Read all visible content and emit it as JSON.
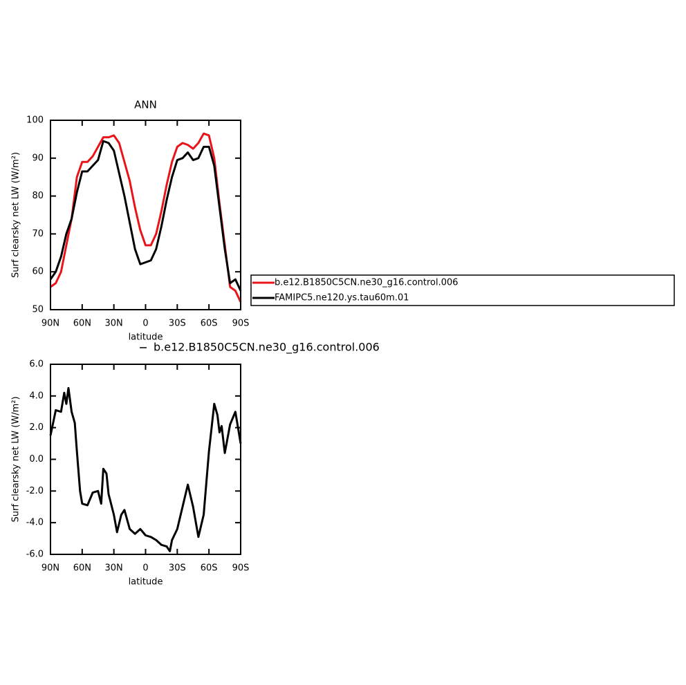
{
  "chart_data": [
    {
      "type": "line",
      "title": "ANN",
      "x_label": "latitude",
      "y_label": "Surf clearsky net LW (W/m²)",
      "xlim": [
        90,
        -90
      ],
      "xticks": [
        {
          "value": 90,
          "label": "90N"
        },
        {
          "value": 60,
          "label": "60N"
        },
        {
          "value": 30,
          "label": "30N"
        },
        0,
        {
          "value": -30,
          "label": "30S"
        },
        {
          "value": -60,
          "label": "60S"
        },
        {
          "value": -90,
          "label": "90S"
        }
      ],
      "ylim": [
        50,
        100
      ],
      "yticks": [
        50,
        60,
        70,
        80,
        90,
        100
      ],
      "x": [
        90,
        85,
        80,
        75,
        70,
        65,
        60,
        55,
        50,
        45,
        40,
        35,
        30,
        25,
        20,
        15,
        10,
        5,
        0,
        -5,
        -10,
        -15,
        -20,
        -25,
        -30,
        -35,
        -40,
        -45,
        -50,
        -55,
        -60,
        -65,
        -70,
        -75,
        -80,
        -85,
        -90
      ],
      "series": [
        {
          "name": "b.e12.B1850C5CN.ne30_g16.control.006",
          "color": "#e8141a",
          "values": [
            56,
            57,
            60,
            67,
            74,
            85,
            89,
            89,
            90.5,
            93,
            95.5,
            95.5,
            96,
            94,
            89,
            84,
            77,
            71,
            67,
            67,
            70,
            76,
            83,
            89,
            93,
            94,
            93.5,
            92.5,
            94,
            96.5,
            96,
            90,
            78,
            67,
            56,
            55,
            52
          ]
        },
        {
          "name": "FAMIPC5.ne120.ys.tau60m.01",
          "color": "#000000",
          "values": [
            58,
            60,
            64,
            70,
            74,
            81,
            86.5,
            86.5,
            88,
            89.5,
            94.5,
            94,
            92,
            86,
            80,
            73,
            66,
            62,
            62.5,
            63,
            66,
            72,
            79,
            85,
            89.5,
            90,
            91.5,
            89.5,
            90,
            93,
            93,
            88,
            77,
            66,
            57,
            58,
            55
          ]
        }
      ]
    },
    {
      "type": "line",
      "x_label": "latitude",
      "y_label": "Surf clearsky net LW (W/m²)",
      "xlim": [
        90,
        -90
      ],
      "xticks": [
        {
          "value": 90,
          "label": "90N"
        },
        {
          "value": 60,
          "label": "60N"
        },
        {
          "value": 30,
          "label": "30N"
        },
        0,
        {
          "value": -30,
          "label": "30S"
        },
        {
          "value": -60,
          "label": "60S"
        },
        {
          "value": -90,
          "label": "90S"
        }
      ],
      "ylim": [
        -6,
        6
      ],
      "yticks": [
        {
          "value": -6,
          "label": "-6.0"
        },
        {
          "value": -4,
          "label": "-4.0"
        },
        {
          "value": -2,
          "label": "-2.0"
        },
        {
          "value": 0,
          "label": "0.0"
        },
        {
          "value": 2,
          "label": "2.0"
        },
        {
          "value": 4,
          "label": "4.0"
        },
        {
          "value": 6,
          "label": "6.0"
        }
      ],
      "x": [
        90,
        85,
        80,
        77,
        75,
        73,
        70,
        67,
        65,
        62,
        60,
        55,
        50,
        45,
        42,
        40,
        37,
        35,
        30,
        27,
        23,
        20,
        15,
        10,
        5,
        0,
        -5,
        -10,
        -15,
        -20,
        -23,
        -25,
        -30,
        -35,
        -40,
        -45,
        -50,
        -55,
        -60,
        -65,
        -68,
        -70,
        -72,
        -75,
        -80,
        -85,
        -90
      ],
      "series": [
        {
          "name": "b.e12.B1850C5CN.ne30_g16.control.006",
          "color": "#000000",
          "values": [
            1.5,
            3.1,
            3.0,
            4.2,
            3.5,
            4.5,
            3.0,
            2.3,
            0.5,
            -2.0,
            -2.8,
            -2.9,
            -2.1,
            -2.0,
            -2.8,
            -0.6,
            -0.9,
            -2.2,
            -3.5,
            -4.6,
            -3.5,
            -3.2,
            -4.4,
            -4.7,
            -4.4,
            -4.8,
            -4.9,
            -5.1,
            -5.4,
            -5.5,
            -5.8,
            -5.1,
            -4.4,
            -3.0,
            -1.6,
            -3.0,
            -4.9,
            -3.5,
            0.5,
            3.5,
            2.8,
            1.7,
            2.1,
            0.4,
            2.2,
            3.0,
            1.0
          ]
        }
      ]
    }
  ]
}
